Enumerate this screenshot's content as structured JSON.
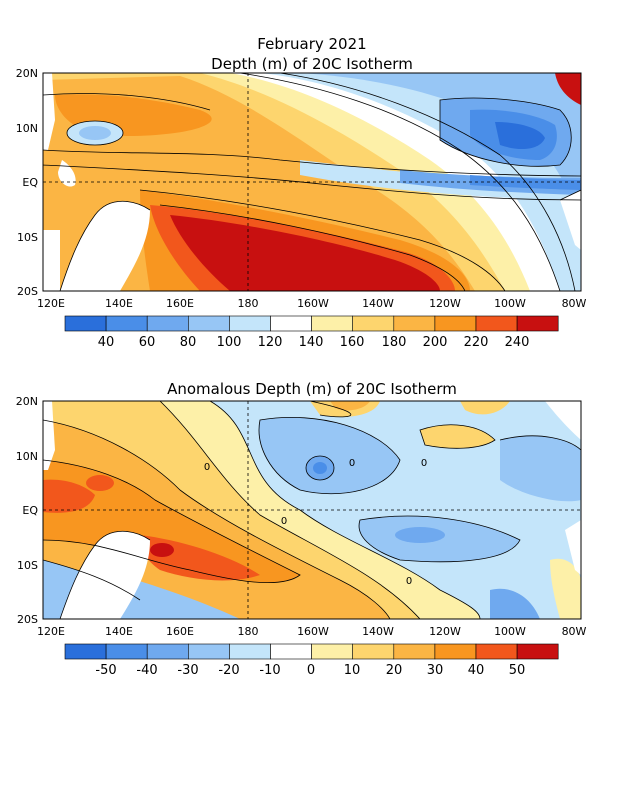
{
  "figure": {
    "title_line1": "February 2021",
    "title_line2": "Depth (m) of 20C Isotherm",
    "panel2_title": "Anomalous Depth (m) of 20C Isotherm"
  },
  "axes": {
    "lat_labels": [
      "20N",
      "10N",
      "EQ",
      "10S",
      "20S"
    ],
    "lon_labels": [
      "120E",
      "140E",
      "160E",
      "180",
      "160W",
      "140W",
      "120W",
      "100W",
      "80W"
    ]
  },
  "colorbar1": {
    "colors": [
      "#2a6fdb",
      "#4a8ee8",
      "#6fa9ef",
      "#97c6f5",
      "#c4e5fa",
      "#ffffff",
      "#fdf0a8",
      "#fdd56e",
      "#fbb544",
      "#f89620",
      "#f2571c",
      "#c81010"
    ],
    "labels": [
      "40",
      "60",
      "80",
      "100",
      "120",
      "140",
      "160",
      "180",
      "200",
      "220",
      "240"
    ]
  },
  "colorbar2": {
    "colors": [
      "#2a6fdb",
      "#4a8ee8",
      "#6fa9ef",
      "#97c6f5",
      "#c4e5fa",
      "#ffffff",
      "#fdf0a8",
      "#fdd56e",
      "#fbb544",
      "#f89620",
      "#f2571c",
      "#c81010"
    ],
    "labels": [
      "-50",
      "-40",
      "-30",
      "-20",
      "-10",
      "0",
      "10",
      "20",
      "30",
      "40",
      "50"
    ]
  },
  "contour_labels": [
    "0",
    "0",
    "0",
    "0",
    "0"
  ]
}
